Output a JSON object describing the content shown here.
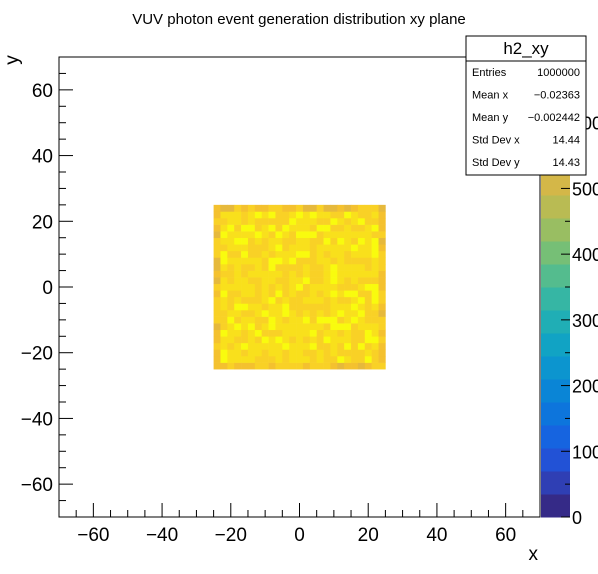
{
  "chart_data": {
    "type": "heatmap",
    "title": "VUV photon event generation distribution xy plane",
    "xlabel": "x",
    "ylabel": "y",
    "xlim": [
      -70,
      70
    ],
    "ylim": [
      -70,
      70
    ],
    "x_ticks": [
      -60,
      -40,
      -20,
      0,
      20,
      40,
      60
    ],
    "y_ticks": [
      -60,
      -40,
      -20,
      0,
      20,
      40,
      60
    ],
    "x_tick_labels": [
      "−60",
      "−40",
      "−20",
      "0",
      "20",
      "40",
      "60"
    ],
    "y_tick_labels": [
      "−60",
      "−40",
      "−20",
      "0",
      "20",
      "40",
      "60"
    ],
    "filled_region": {
      "x": [
        -25,
        25
      ],
      "y": [
        -25,
        25
      ],
      "bin_width": 2,
      "typical_count": 640
    },
    "zlim": [
      0,
      700
    ],
    "z_tick_labels": [
      "0",
      "100",
      "200",
      "300",
      "400",
      "500",
      "600"
    ],
    "z_ticks": [
      0,
      100,
      200,
      300,
      400,
      500,
      600
    ],
    "palette": [
      "#352a87",
      "#2f3fb4",
      "#2252d6",
      "#1664e0",
      "#0d75dc",
      "#0a85d6",
      "#0c95cf",
      "#11a3c4",
      "#20aeb5",
      "#36b6a4",
      "#54bc8e",
      "#76bf76",
      "#99be62",
      "#b9bb53",
      "#d4b748",
      "#e6b93c",
      "#f4c12f",
      "#f9d126",
      "#f9e01c",
      "#f9fb0e"
    ],
    "stats": {
      "name": "h2_xy",
      "rows": [
        {
          "label": "Entries",
          "value": "1000000"
        },
        {
          "label": "Mean x",
          "value": "−0.02363"
        },
        {
          "label": "Mean y",
          "value": "−0.002442"
        },
        {
          "label": "Std Dev x",
          "value": "14.44"
        },
        {
          "label": "Std Dev y",
          "value": "14.43"
        }
      ]
    }
  }
}
